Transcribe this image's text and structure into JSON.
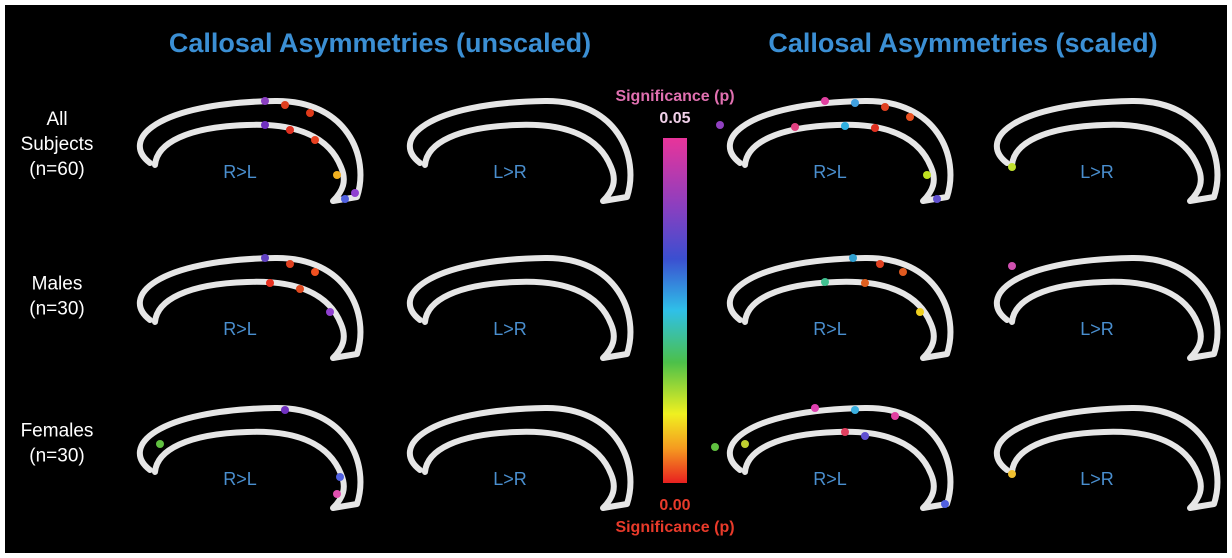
{
  "titles": [
    "Callosal Asymmetries (unscaled)",
    "Callosal Asymmetries (scaled)"
  ],
  "row_labels": [
    [
      "All",
      "Subjects",
      "(n=60)"
    ],
    [
      "Males",
      "(n=30)"
    ],
    [
      "Females",
      "(n=30)"
    ]
  ],
  "panels": [
    [
      "R>L",
      "L>R",
      "R>L",
      "L>R"
    ],
    [
      "R>L",
      "L>R",
      "R>L",
      "L>R"
    ],
    [
      "R>L",
      "L>R",
      "R>L",
      "L>R"
    ]
  ],
  "colorbar": {
    "top_title": "Significance (p)",
    "top_value": "0.05",
    "bottom_value": "0.00",
    "bottom_title": "Significance (p)"
  }
}
